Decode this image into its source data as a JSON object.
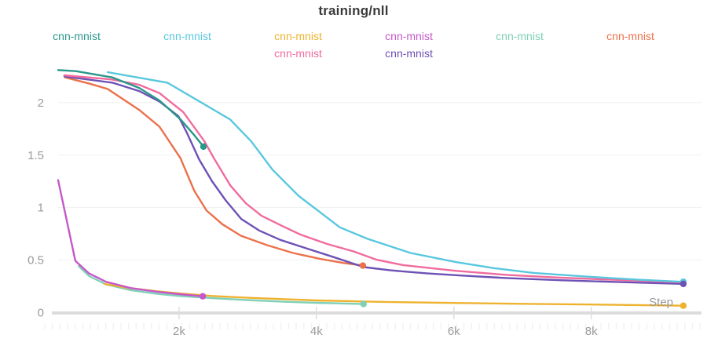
{
  "chart_data": {
    "type": "line",
    "title": "training/nll",
    "xlabel": "Step",
    "ylabel": "",
    "xlim": [
      240,
      9650
    ],
    "ylim": [
      0,
      2.35
    ],
    "grid": "horizontal",
    "legend_position": "top",
    "x_ticks": [
      {
        "value": 2000,
        "label": "2k"
      },
      {
        "value": 4000,
        "label": "4k"
      },
      {
        "value": 6000,
        "label": "6k"
      },
      {
        "value": 8000,
        "label": "8k"
      }
    ],
    "y_ticks": [
      {
        "value": 0,
        "label": "0"
      },
      {
        "value": 0.5,
        "label": "0.5"
      },
      {
        "value": 1,
        "label": "1"
      },
      {
        "value": 1.5,
        "label": "1.5"
      },
      {
        "value": 2,
        "label": "2"
      }
    ],
    "series": [
      {
        "name": "cnn-mnist",
        "color": "#7fd0b6",
        "end_dot": true,
        "points": [
          [
            540,
            0.44
          ],
          [
            690,
            0.345
          ],
          [
            940,
            0.265
          ],
          [
            1300,
            0.21
          ],
          [
            1680,
            0.175
          ],
          [
            2000,
            0.155
          ],
          [
            2480,
            0.135
          ],
          [
            3000,
            0.115
          ],
          [
            3510,
            0.1
          ],
          [
            4000,
            0.09
          ],
          [
            4685,
            0.078
          ]
        ]
      },
      {
        "name": "cnn-mnist",
        "color": "#eeb22f",
        "end_dot": true,
        "points": [
          [
            915,
            0.27
          ],
          [
            1225,
            0.235
          ],
          [
            1680,
            0.2
          ],
          [
            2000,
            0.18
          ],
          [
            2480,
            0.155
          ],
          [
            3000,
            0.138
          ],
          [
            3510,
            0.125
          ],
          [
            4000,
            0.112
          ],
          [
            5000,
            0.098
          ],
          [
            6000,
            0.088
          ],
          [
            7000,
            0.08
          ],
          [
            8000,
            0.073
          ],
          [
            9340,
            0.062
          ]
        ]
      },
      {
        "name": "cnn-mnist",
        "color": "#c558c9",
        "end_dot": true,
        "points": [
          [
            240,
            1.26
          ],
          [
            490,
            0.49
          ],
          [
            690,
            0.37
          ],
          [
            940,
            0.29
          ],
          [
            1300,
            0.23
          ],
          [
            1680,
            0.195
          ],
          [
            2000,
            0.172
          ],
          [
            2345,
            0.152
          ]
        ]
      },
      {
        "name": "cnn-mnist",
        "color": "#eb714b",
        "end_dot": true,
        "points": [
          [
            345,
            2.24
          ],
          [
            700,
            2.18
          ],
          [
            960,
            2.13
          ],
          [
            1420,
            1.93
          ],
          [
            1715,
            1.77
          ],
          [
            2020,
            1.47
          ],
          [
            2220,
            1.16
          ],
          [
            2400,
            0.97
          ],
          [
            2630,
            0.84
          ],
          [
            2900,
            0.73
          ],
          [
            3280,
            0.64
          ],
          [
            3660,
            0.565
          ],
          [
            4050,
            0.51
          ],
          [
            4390,
            0.47
          ],
          [
            4675,
            0.445
          ]
        ]
      },
      {
        "name": "cnn-mnist",
        "color": "#6e51b5",
        "end_dot": true,
        "dot_on_top": true,
        "points": [
          [
            330,
            2.25
          ],
          [
            1030,
            2.19
          ],
          [
            1420,
            2.11
          ],
          [
            1715,
            2.01
          ],
          [
            1990,
            1.87
          ],
          [
            2115,
            1.71
          ],
          [
            2290,
            1.46
          ],
          [
            2480,
            1.25
          ],
          [
            2675,
            1.07
          ],
          [
            2905,
            0.89
          ],
          [
            3165,
            0.78
          ],
          [
            3475,
            0.69
          ],
          [
            3850,
            0.61
          ],
          [
            4230,
            0.53
          ],
          [
            4690,
            0.43
          ],
          [
            5075,
            0.4
          ],
          [
            5620,
            0.37
          ],
          [
            6100,
            0.35
          ],
          [
            6790,
            0.325
          ],
          [
            7540,
            0.305
          ],
          [
            8310,
            0.29
          ],
          [
            9340,
            0.27
          ]
        ]
      },
      {
        "name": "cnn-mnist",
        "color": "#f06b9e",
        "end_dot": true,
        "points": [
          [
            330,
            2.26
          ],
          [
            1030,
            2.22
          ],
          [
            1420,
            2.17
          ],
          [
            1715,
            2.09
          ],
          [
            2060,
            1.91
          ],
          [
            2370,
            1.63
          ],
          [
            2515,
            1.46
          ],
          [
            2745,
            1.21
          ],
          [
            2970,
            1.04
          ],
          [
            3200,
            0.92
          ],
          [
            3510,
            0.82
          ],
          [
            3770,
            0.74
          ],
          [
            4160,
            0.65
          ],
          [
            4540,
            0.58
          ],
          [
            4880,
            0.5
          ],
          [
            5260,
            0.45
          ],
          [
            6020,
            0.395
          ],
          [
            6790,
            0.355
          ],
          [
            7540,
            0.33
          ],
          [
            8310,
            0.31
          ],
          [
            9340,
            0.285
          ]
        ]
      },
      {
        "name": "cnn-mnist",
        "color": "#2a988b",
        "end_dot": true,
        "points": [
          [
            240,
            2.31
          ],
          [
            500,
            2.3
          ],
          [
            1030,
            2.24
          ],
          [
            1420,
            2.14
          ],
          [
            1715,
            2.02
          ],
          [
            2020,
            1.84
          ],
          [
            2220,
            1.69
          ],
          [
            2355,
            1.58
          ]
        ]
      },
      {
        "name": "cnn-mnist",
        "color": "#58c7de",
        "end_dot": true,
        "points": [
          [
            960,
            2.29
          ],
          [
            1830,
            2.19
          ],
          [
            2740,
            1.84
          ],
          [
            3050,
            1.63
          ],
          [
            3360,
            1.36
          ],
          [
            3740,
            1.11
          ],
          [
            4000,
            0.98
          ],
          [
            4340,
            0.81
          ],
          [
            4745,
            0.7
          ],
          [
            5370,
            0.565
          ],
          [
            6020,
            0.48
          ],
          [
            6590,
            0.42
          ],
          [
            7160,
            0.375
          ],
          [
            7930,
            0.34
          ],
          [
            8690,
            0.31
          ],
          [
            9340,
            0.29
          ]
        ]
      }
    ]
  },
  "legend": {
    "items": [
      {
        "label": "cnn-mnist",
        "color": "#2a988b",
        "row": 1,
        "col": 1
      },
      {
        "label": "cnn-mnist",
        "color": "#58c7de",
        "row": 1,
        "col": 2
      },
      {
        "label": "cnn-mnist",
        "color": "#eeb22f",
        "row": 1,
        "col": 3
      },
      {
        "label": "cnn-mnist",
        "color": "#c558c9",
        "row": 1,
        "col": 4
      },
      {
        "label": "cnn-mnist",
        "color": "#7fd0b6",
        "row": 1,
        "col": 5
      },
      {
        "label": "cnn-mnist",
        "color": "#eb714b",
        "row": 1,
        "col": 6
      },
      {
        "label": "cnn-mnist",
        "color": "#f06b9e",
        "row": 2,
        "col": 3
      },
      {
        "label": "cnn-mnist",
        "color": "#6e51b5",
        "row": 2,
        "col": 4
      }
    ]
  },
  "colors": {
    "title_text": "#3b3b3b",
    "axis_text": "#9a9a9a",
    "gridline": "#f1f1f1",
    "axis_bar": "#dcdcdc",
    "major_tick": "#dedede",
    "minor_tick": "#f2f2f2"
  }
}
